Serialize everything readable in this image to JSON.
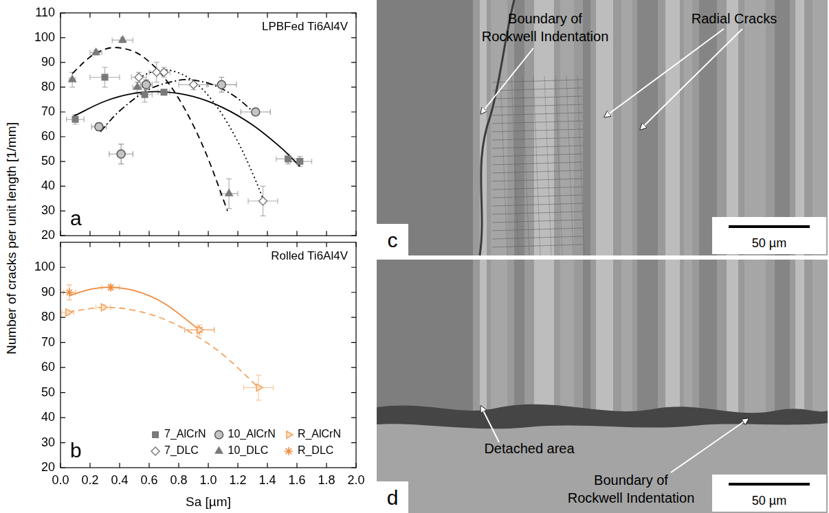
{
  "chart_data": [
    {
      "type": "scatter",
      "panel": "a",
      "title": "LPBFed Ti6Al4V",
      "xlim": [
        0,
        2
      ],
      "xticks": [
        {
          "value": 0,
          "label": "0.0"
        },
        0.2,
        0.4,
        0.6,
        0.8,
        {
          "value": 1,
          "label": "1.0"
        },
        1.2,
        1.4,
        1.6,
        1.8,
        {
          "value": 2,
          "label": "2.0"
        }
      ],
      "ylim": [
        20,
        110
      ],
      "yticks": [
        20,
        30,
        40,
        50,
        60,
        70,
        80,
        90,
        100,
        110
      ],
      "grid": false,
      "tick_labels": "y",
      "series": [
        {
          "name": "7_AlCrN",
          "color": "#7a7a7a",
          "marker": "square",
          "x": [
            0.1,
            0.3,
            0.57,
            0.7,
            1.54,
            1.62
          ],
          "values": [
            67,
            84,
            77,
            78,
            51,
            50
          ],
          "x_err": [
            0.06,
            0.1,
            0.05,
            0.04,
            0.08,
            0.08
          ],
          "y_err": [
            2,
            4,
            3,
            1,
            2,
            2
          ],
          "fit": {
            "x": [
              0.08,
              0.3,
              0.5,
              0.7,
              0.9,
              1.1,
              1.3,
              1.5,
              1.62
            ],
            "values": [
              68,
              74.3,
              77.5,
              78.1,
              76.2,
              71.7,
              64.7,
              55.1,
              48
            ],
            "line_style": "solid",
            "color": "#000000"
          }
        },
        {
          "name": "7_DLC",
          "color": "#7a7a7a",
          "marker": "diamond_open",
          "x": [
            0.53,
            0.65,
            0.7,
            0.9,
            1.37
          ],
          "values": [
            84,
            86,
            86,
            81,
            34
          ],
          "x_err": [
            0.05,
            0.05,
            0.04,
            0.1,
            0.1
          ],
          "y_err": [
            2,
            4,
            2,
            2,
            6
          ],
          "fit": {
            "x": [
              0.53,
              0.6,
              0.7,
              0.8,
              0.9,
              1.0,
              1.1,
              1.2,
              1.3,
              1.37
            ],
            "values": [
              83.6,
              85.8,
              87,
              85.8,
              82.4,
              76.6,
              68.4,
              58,
              45.2,
              35
            ],
            "line_style": "dotted",
            "color": "#000000"
          }
        },
        {
          "name": "10_AlCrN",
          "color": "#7a7a7a",
          "marker": "circle_half",
          "x": [
            0.26,
            0.41,
            0.58,
            1.09,
            1.32
          ],
          "values": [
            64,
            53,
            81,
            81,
            70
          ],
          "x_err": [
            0.05,
            0.08,
            0.04,
            0.1,
            0.1
          ],
          "y_err": [
            1.5,
            4,
            2,
            3,
            1
          ],
          "fit": {
            "x": [
              0.27,
              0.4,
              0.6,
              0.8,
              0.9,
              1.0,
              1.1,
              1.2,
              1.32
            ],
            "values": [
              62,
              70.4,
              79.1,
              82.8,
              82.8,
              81.6,
              79.1,
              75.4,
              69.2
            ],
            "line_style": "dashdot",
            "color": "#000000"
          }
        },
        {
          "name": "10_DLC",
          "color": "#7a7a7a",
          "marker": "triangle",
          "x": [
            0.08,
            0.24,
            0.42,
            0.52,
            1.14
          ],
          "values": [
            83,
            94,
            99,
            80,
            37
          ],
          "x_err": [
            0.02,
            0.04,
            0.07,
            0.03,
            0.06
          ],
          "y_err": [
            3,
            1,
            1,
            2,
            6
          ],
          "fit": {
            "x": [
              0.08,
              0.2,
              0.3,
              0.38,
              0.5,
              0.6,
              0.7,
              0.8,
              0.9,
              1.0,
              1.13
            ],
            "values": [
              85.5,
              92.2,
              95.3,
              96,
              94.3,
              90.3,
              84,
              75.4,
              64.4,
              51,
              30
            ],
            "line_style": "dashed",
            "color": "#000000"
          }
        }
      ]
    },
    {
      "type": "scatter",
      "panel": "b",
      "title": "Rolled Ti6Al4V",
      "xlabel": "Sa [µm]",
      "xlim": [
        0,
        2
      ],
      "xticks": [
        {
          "value": 0,
          "label": "0.0"
        },
        0.2,
        0.4,
        0.6,
        0.8,
        {
          "value": 1,
          "label": "1.0"
        },
        1.2,
        1.4,
        1.6,
        1.8,
        {
          "value": 2,
          "label": "2.0"
        }
      ],
      "ylim": [
        20,
        110
      ],
      "yticks": [
        20,
        30,
        40,
        50,
        60,
        70,
        80,
        90,
        100
      ],
      "grid": false,
      "legend": "lower right",
      "series": [
        {
          "name": "R_AlCrN",
          "color": "#f5a35c",
          "marker": "triangle_right_open",
          "x": [
            0.05,
            0.29,
            0.94,
            1.34
          ],
          "values": [
            82,
            84,
            75,
            52
          ],
          "x_err": [
            0.04,
            0.05,
            0.1,
            0.1
          ],
          "y_err": [
            1,
            1,
            2,
            5
          ],
          "fit": {
            "x": [
              0.05,
              0.3,
              0.5,
              0.7,
              0.9,
              1.1,
              1.34
            ],
            "values": [
              82.2,
              84,
              82.8,
              79.3,
              73.3,
              65.1,
              52
            ],
            "line_style": "dashed",
            "color": "#f5a35c"
          }
        },
        {
          "name": "R_DLC",
          "color": "#f08a3c",
          "marker": "star",
          "x": [
            0.06,
            0.34,
            0.94
          ],
          "values": [
            90,
            92,
            75
          ],
          "x_err": [
            0.04,
            0.06,
            0.1
          ],
          "y_err": [
            3,
            1,
            1
          ],
          "fit": {
            "x": [
              0.06,
              0.2,
              0.33,
              0.5,
              0.7,
              0.94
            ],
            "values": [
              88.7,
              91.2,
              92,
              90.7,
              85.7,
              75
            ],
            "line_style": "solid",
            "color": "#f08a3c"
          }
        }
      ]
    }
  ],
  "ylabel": "Number of cracks per unit length [1/mm]",
  "image_panels": [
    {
      "panel": "c",
      "labels": [
        "Boundary of Rockwell Indentation",
        "Radial Cracks"
      ],
      "scale_bar": "50 µm"
    },
    {
      "panel": "d",
      "labels": [
        "Detached area",
        "Boundary of Rockwell Indentation"
      ],
      "scale_bar": "50 µm"
    }
  ]
}
